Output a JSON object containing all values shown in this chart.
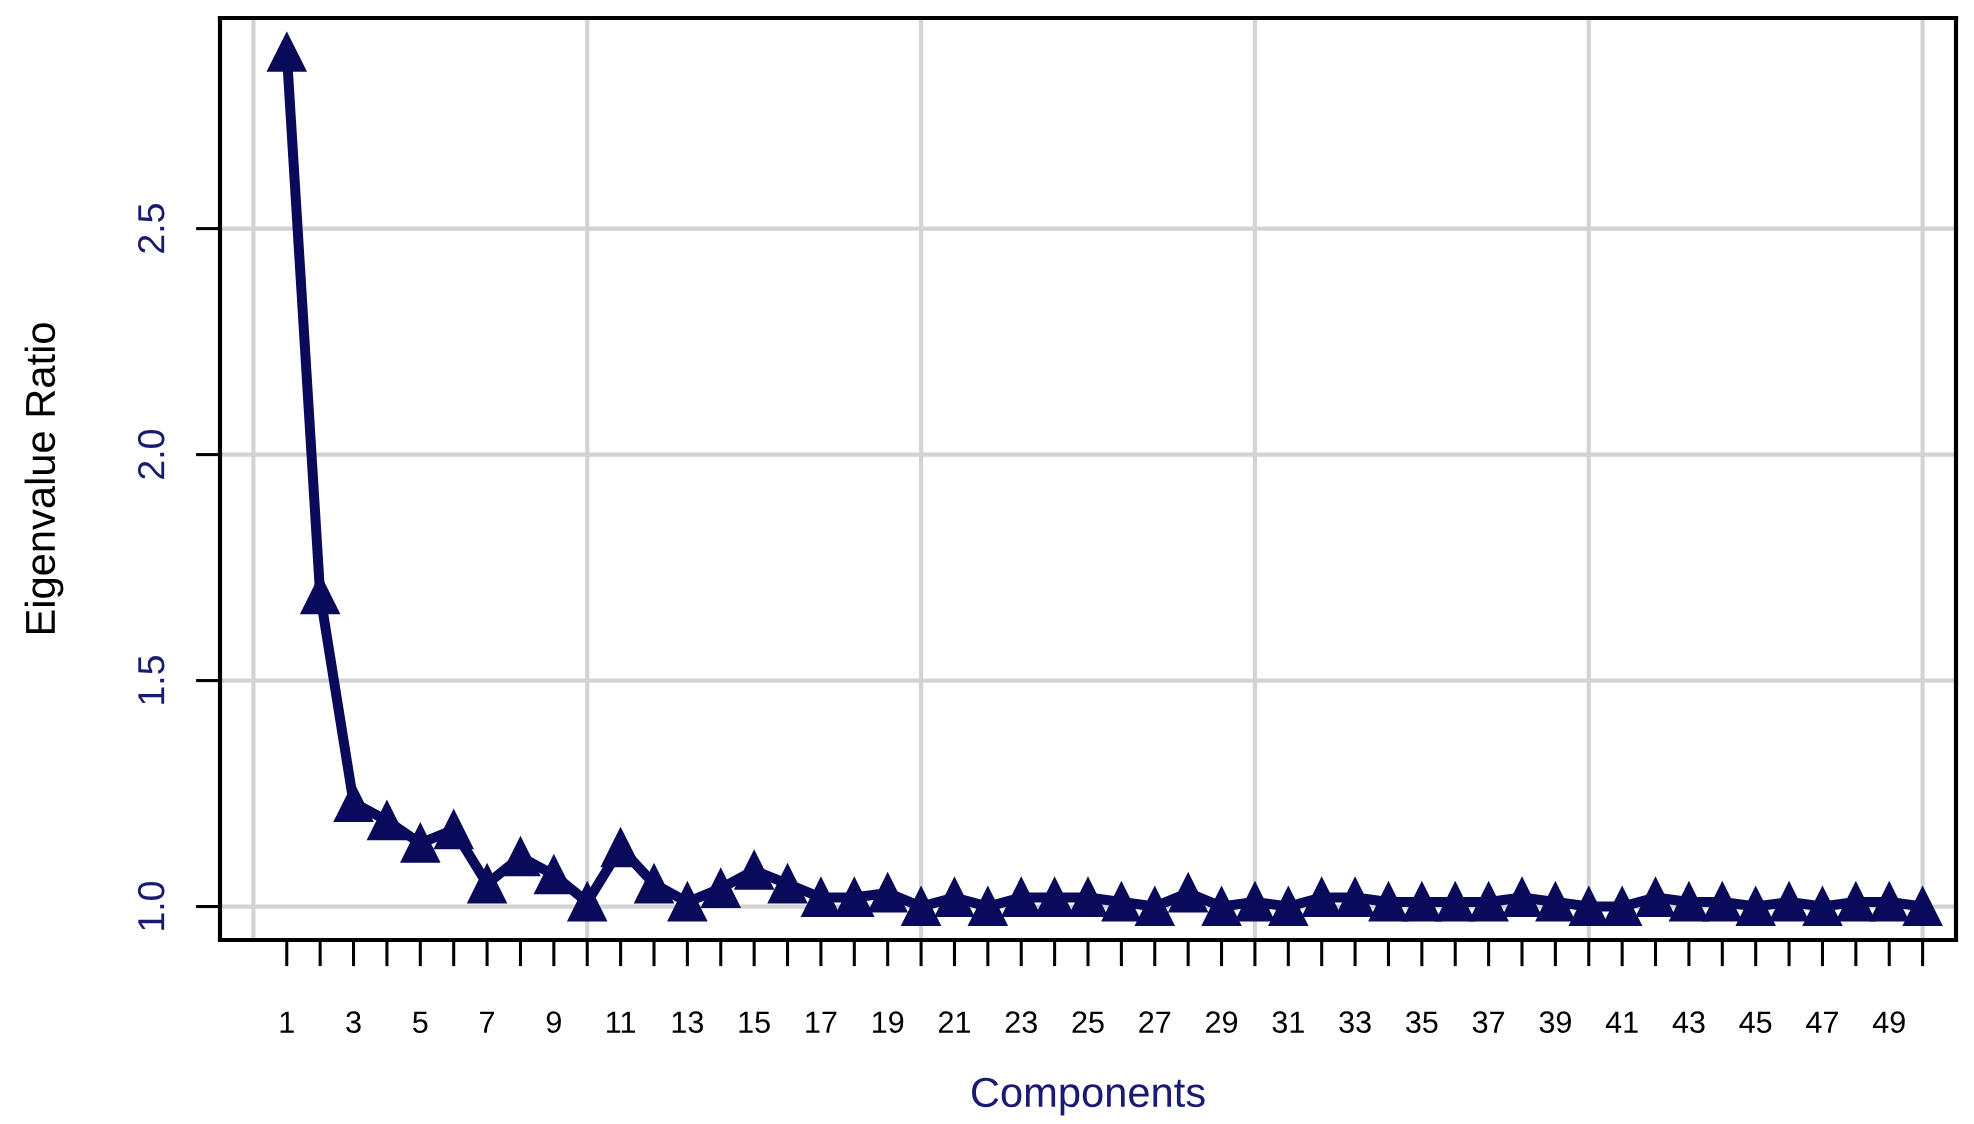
{
  "chart_data": {
    "type": "line",
    "xlabel": "Components",
    "ylabel": "Eigenvalue Ratio",
    "x": [
      1,
      2,
      3,
      4,
      5,
      6,
      7,
      8,
      9,
      10,
      11,
      12,
      13,
      14,
      15,
      16,
      17,
      18,
      19,
      20,
      21,
      22,
      23,
      24,
      25,
      26,
      27,
      28,
      29,
      30,
      31,
      32,
      33,
      34,
      35,
      36,
      37,
      38,
      39,
      40,
      41,
      42,
      43,
      44,
      45,
      46,
      47,
      48,
      49,
      50
    ],
    "series": [
      {
        "color": "#0a0a5a",
        "values": [
          2.89,
          1.69,
          1.23,
          1.19,
          1.14,
          1.17,
          1.05,
          1.11,
          1.07,
          1.01,
          1.13,
          1.05,
          1.01,
          1.04,
          1.08,
          1.05,
          1.02,
          1.02,
          1.03,
          1.0,
          1.02,
          1.0,
          1.02,
          1.02,
          1.02,
          1.01,
          1.0,
          1.03,
          1.0,
          1.01,
          1.0,
          1.02,
          1.02,
          1.01,
          1.01,
          1.01,
          1.01,
          1.02,
          1.01,
          1.0,
          1.0,
          1.02,
          1.01,
          1.01,
          1.0,
          1.01,
          1.0,
          1.01,
          1.01,
          1.0
        ]
      }
    ],
    "xlim": [
      -1,
      51
    ],
    "ylim": [
      0.926,
      2.966
    ],
    "xticks": [
      1,
      {
        "value": 2,
        "label": null
      },
      3,
      {
        "value": 4,
        "label": null
      },
      5,
      {
        "value": 6,
        "label": null
      },
      7,
      {
        "value": 8,
        "label": null
      },
      9,
      {
        "value": 10,
        "label": null
      },
      11,
      {
        "value": 12,
        "label": null
      },
      13,
      {
        "value": 14,
        "label": null
      },
      15,
      {
        "value": 16,
        "label": null
      },
      17,
      {
        "value": 18,
        "label": null
      },
      19,
      {
        "value": 20,
        "label": null
      },
      21,
      {
        "value": 22,
        "label": null
      },
      23,
      {
        "value": 24,
        "label": null
      },
      25,
      {
        "value": 26,
        "label": null
      },
      27,
      {
        "value": 28,
        "label": null
      },
      29,
      {
        "value": 30,
        "label": null
      },
      31,
      {
        "value": 32,
        "label": null
      },
      33,
      {
        "value": 34,
        "label": null
      },
      35,
      {
        "value": 36,
        "label": null
      },
      37,
      {
        "value": 38,
        "label": null
      },
      39,
      {
        "value": 40,
        "label": null
      },
      41,
      {
        "value": 42,
        "label": null
      },
      43,
      {
        "value": 44,
        "label": null
      },
      45,
      {
        "value": 46,
        "label": null
      },
      47,
      {
        "value": 48,
        "label": null
      },
      49,
      {
        "value": 50,
        "label": null
      }
    ],
    "yticks": [
      {
        "value": 1,
        "label": "1.0"
      },
      {
        "value": 1.5,
        "label": "1.5"
      },
      {
        "value": 2,
        "label": "2.0"
      },
      {
        "value": 2.5,
        "label": "2.5"
      }
    ],
    "grid": "y",
    "ref_lines": [
      {
        "axis": "x",
        "value": 0,
        "color": "#d3d3d3"
      },
      {
        "axis": "x",
        "value": 10,
        "color": "#d3d3d3"
      },
      {
        "axis": "x",
        "value": 20,
        "color": "#d3d3d3"
      },
      {
        "axis": "x",
        "value": 30,
        "color": "#d3d3d3"
      },
      {
        "axis": "x",
        "value": 40,
        "color": "#d3d3d3"
      },
      {
        "axis": "x",
        "value": 50,
        "color": "#d3d3d3"
      }
    ],
    "marker": "triangle",
    "line_style": "solid"
  }
}
